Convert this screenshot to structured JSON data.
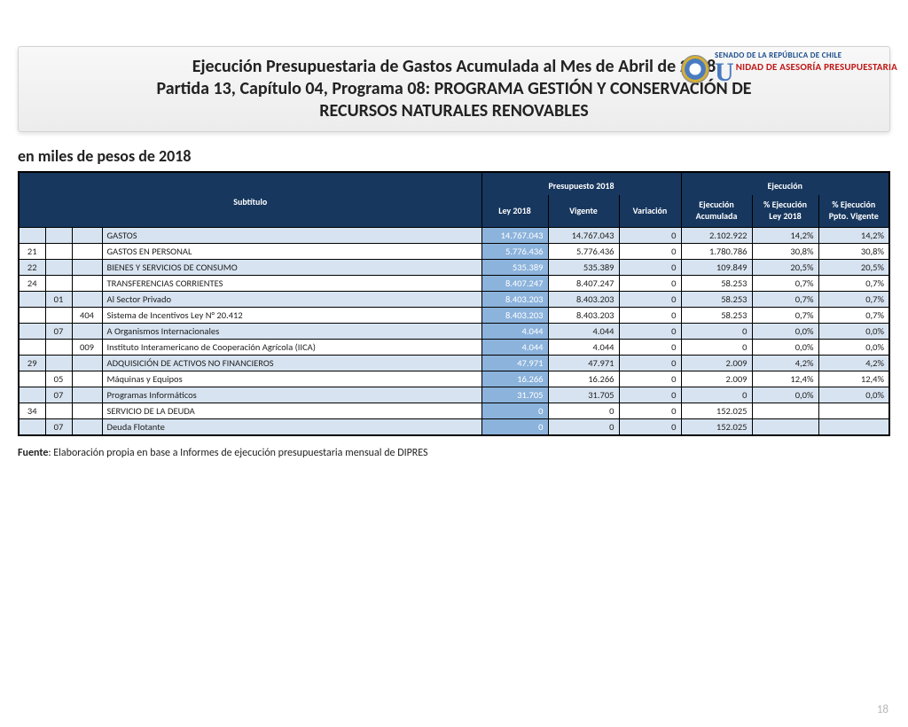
{
  "logo": {
    "line1": "SENADO DE LA REPÚBLICA DE CHILE",
    "line2": "NIDAD DE ASESORÍA PRESUPUESTARIA"
  },
  "title": {
    "l1": "Ejecución Presupuestaria de Gastos Acumulada al Mes de Abril de 2018",
    "l2": "Partida 13, Capítulo 04, Programa 08: PROGRAMA GESTIÓN Y CONSERVACIÓN DE",
    "l3": "RECURSOS NATURALES RENOVABLES"
  },
  "subtitle": "en miles de pesos de 2018",
  "headers": {
    "sub": "Subtítulo",
    "presup": "Presupuesto 2018",
    "ejec": "Ejecución",
    "ley": "Ley 2018",
    "vig": "Vigente",
    "var": "Variación",
    "acum": "Ejecución Acumulada",
    "pley": "% Ejecución Ley 2018",
    "pvig": "% Ejecución Ppto. Vigente"
  },
  "rows": [
    {
      "band": true,
      "c1": "",
      "c2": "",
      "c3": "",
      "name": "GASTOS",
      "ley": "14.767.043",
      "vig": "14.767.043",
      "var": "0",
      "acum": "2.102.922",
      "pl": "14,2%",
      "pv": "14,2%"
    },
    {
      "band": false,
      "c1": "21",
      "c2": "",
      "c3": "",
      "name": "GASTOS EN PERSONAL",
      "ley": "5.776.436",
      "vig": "5.776.436",
      "var": "0",
      "acum": "1.780.786",
      "pl": "30,8%",
      "pv": "30,8%"
    },
    {
      "band": true,
      "c1": "22",
      "c2": "",
      "c3": "",
      "name": "BIENES Y SERVICIOS DE CONSUMO",
      "ley": "535.389",
      "vig": "535.389",
      "var": "0",
      "acum": "109.849",
      "pl": "20,5%",
      "pv": "20,5%"
    },
    {
      "band": false,
      "c1": "24",
      "c2": "",
      "c3": "",
      "name": "TRANSFERENCIAS CORRIENTES",
      "ley": "8.407.247",
      "vig": "8.407.247",
      "var": "0",
      "acum": "58.253",
      "pl": "0,7%",
      "pv": "0,7%"
    },
    {
      "band": true,
      "c1": "",
      "c2": "01",
      "c3": "",
      "name": "Al Sector Privado",
      "ley": "8.403.203",
      "vig": "8.403.203",
      "var": "0",
      "acum": "58.253",
      "pl": "0,7%",
      "pv": "0,7%"
    },
    {
      "band": false,
      "c1": "",
      "c2": "",
      "c3": "404",
      "name": "Sistema de Incentivos Ley N° 20.412",
      "ley": "8.403.203",
      "vig": "8.403.203",
      "var": "0",
      "acum": "58.253",
      "pl": "0,7%",
      "pv": "0,7%"
    },
    {
      "band": true,
      "c1": "",
      "c2": "07",
      "c3": "",
      "name": "A Organismos Internacionales",
      "ley": "4.044",
      "vig": "4.044",
      "var": "0",
      "acum": "0",
      "pl": "0,0%",
      "pv": "0,0%"
    },
    {
      "band": false,
      "c1": "",
      "c2": "",
      "c3": "009",
      "name": "Instituto Interamericano de Cooperación Agrícola (IICA)",
      "ley": "4.044",
      "vig": "4.044",
      "var": "0",
      "acum": "0",
      "pl": "0,0%",
      "pv": "0,0%"
    },
    {
      "band": true,
      "c1": "29",
      "c2": "",
      "c3": "",
      "name": "ADQUISICIÓN DE ACTIVOS NO FINANCIEROS",
      "ley": "47.971",
      "vig": "47.971",
      "var": "0",
      "acum": "2.009",
      "pl": "4,2%",
      "pv": "4,2%"
    },
    {
      "band": false,
      "c1": "",
      "c2": "05",
      "c3": "",
      "name": "Máquinas y Equipos",
      "ley": "16.266",
      "vig": "16.266",
      "var": "0",
      "acum": "2.009",
      "pl": "12,4%",
      "pv": "12,4%"
    },
    {
      "band": true,
      "c1": "",
      "c2": "07",
      "c3": "",
      "name": "Programas Informáticos",
      "ley": "31.705",
      "vig": "31.705",
      "var": "0",
      "acum": "0",
      "pl": "0,0%",
      "pv": "0,0%"
    },
    {
      "band": false,
      "c1": "34",
      "c2": "",
      "c3": "",
      "name": "SERVICIO DE LA DEUDA",
      "ley": "0",
      "vig": "0",
      "var": "0",
      "acum": "152.025",
      "pl": "",
      "pv": ""
    },
    {
      "band": true,
      "c1": "",
      "c2": "07",
      "c3": "",
      "name": "Deuda Flotante",
      "ley": "0",
      "vig": "0",
      "var": "0",
      "acum": "152.025",
      "pl": "",
      "pv": ""
    }
  ],
  "fuente_label": "Fuente",
  "fuente_text": ": Elaboración propia en base  a Informes de ejecución presupuestaria mensual de DIPRES",
  "page": "18"
}
